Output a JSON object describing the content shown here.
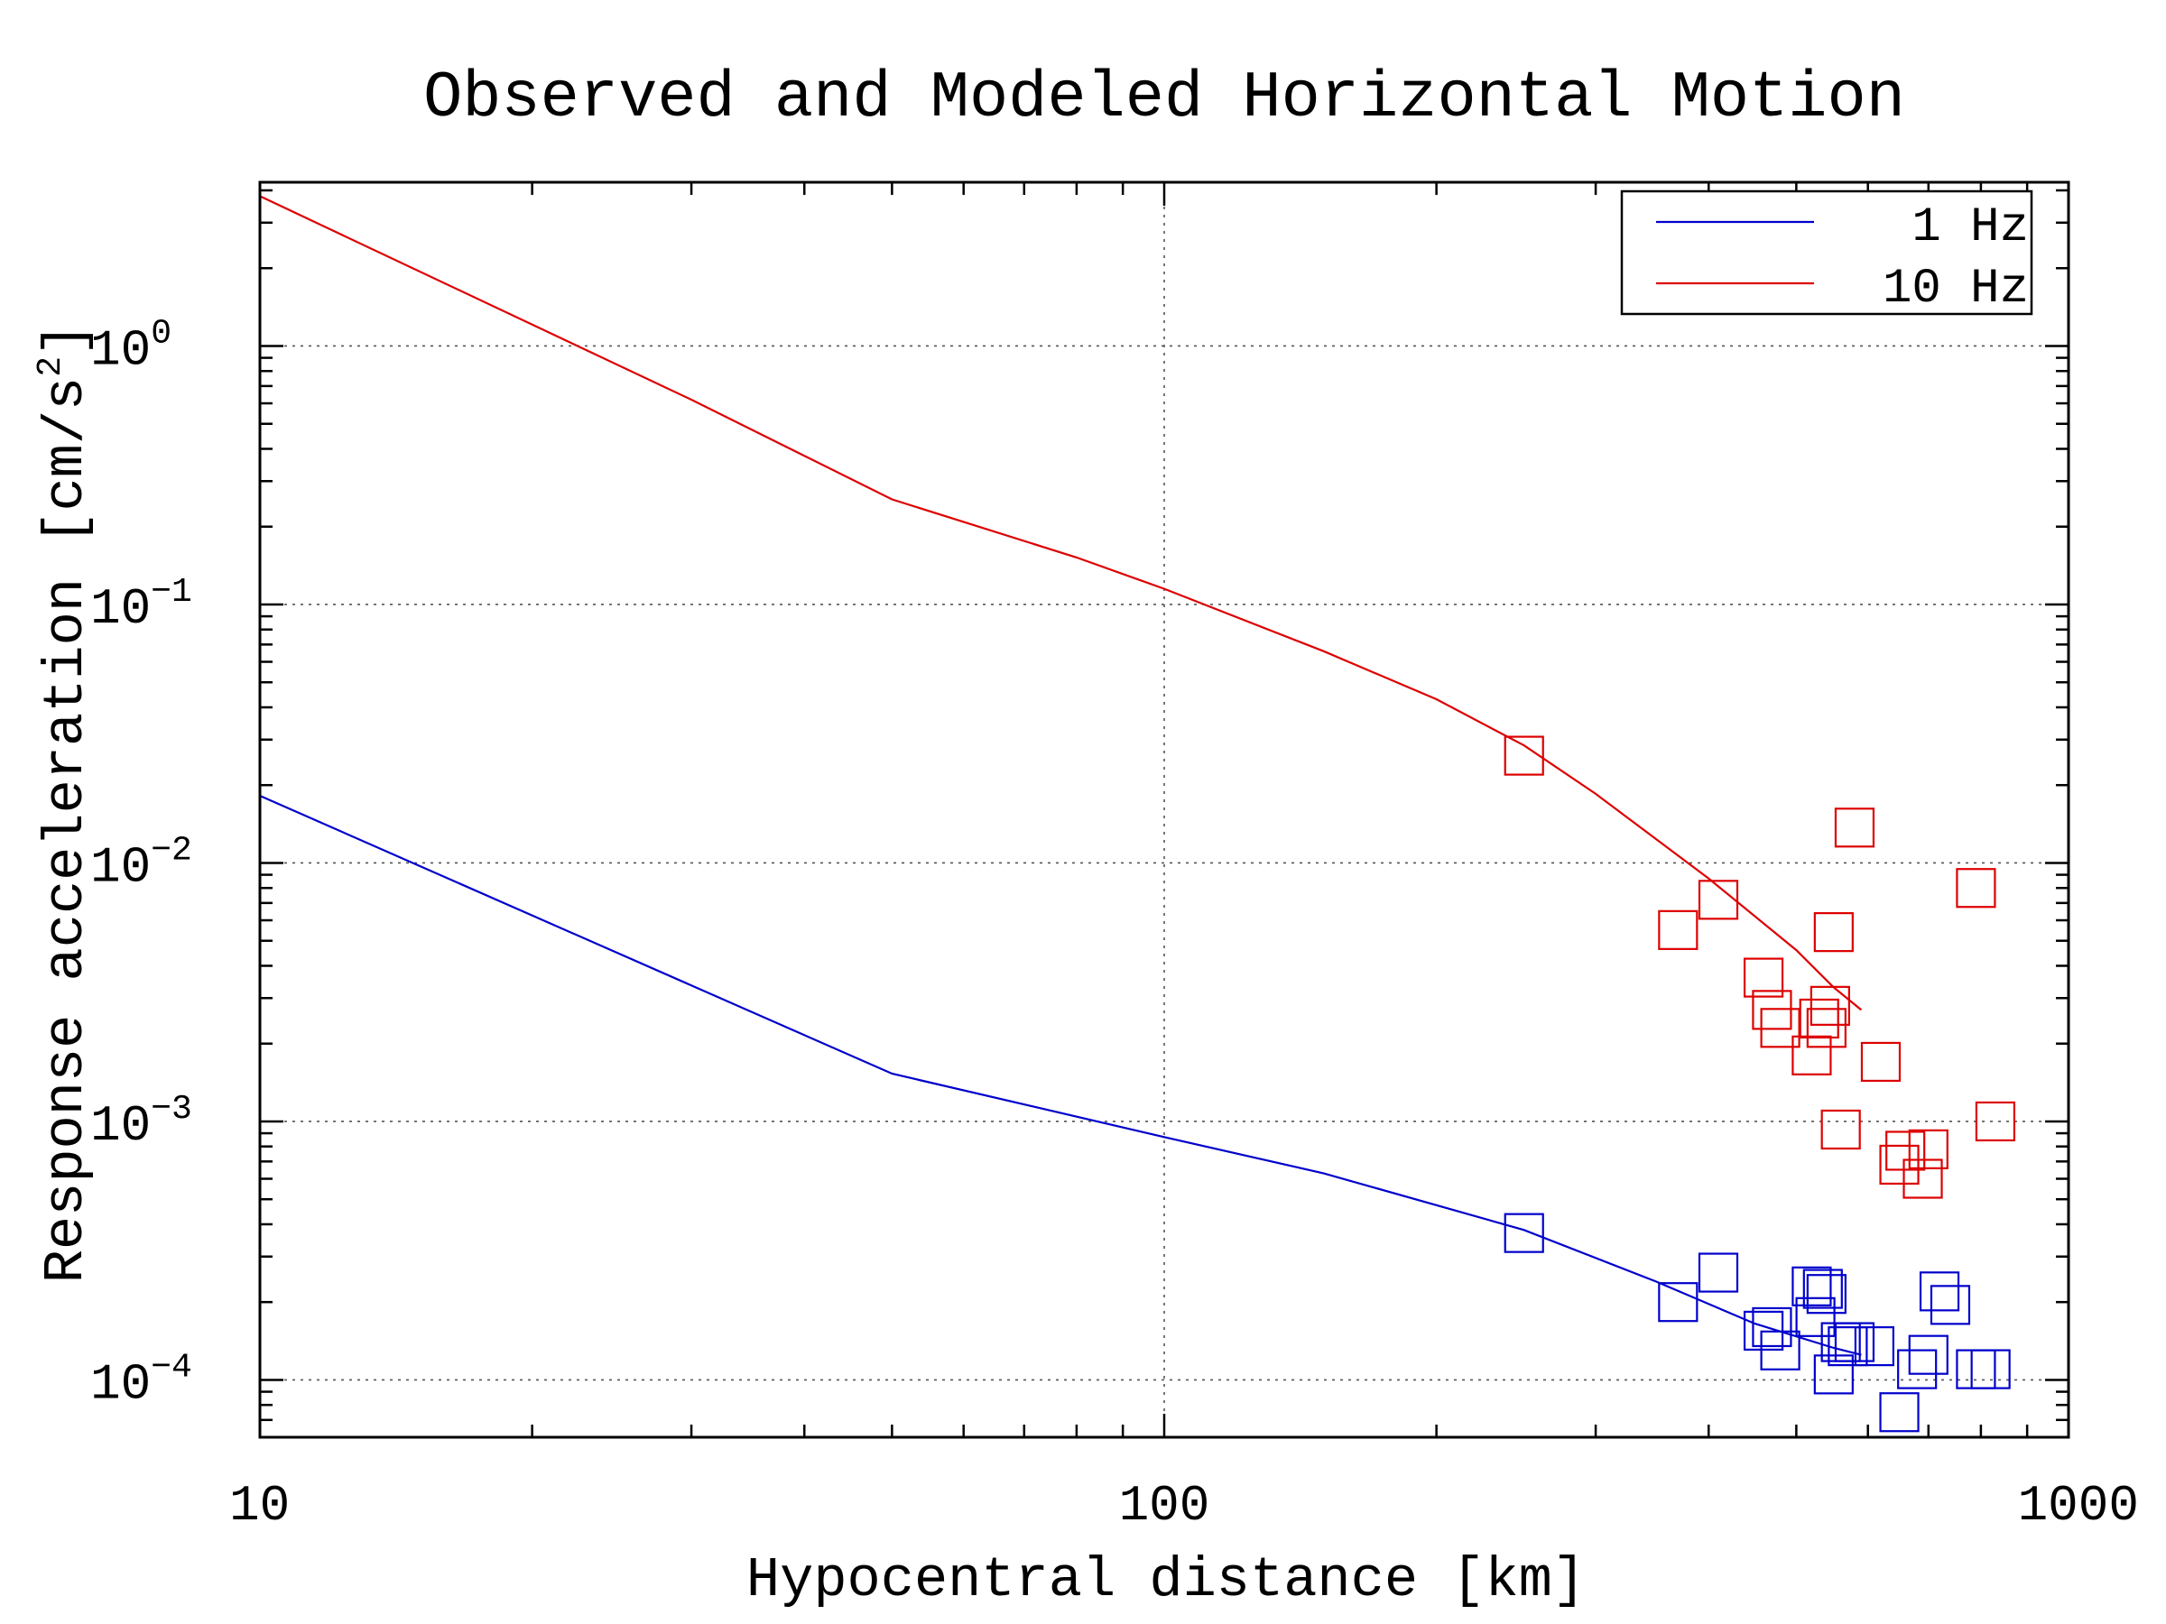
{
  "chart_data": {
    "type": "scatter",
    "title": "Observed and Modeled Horizontal Motion",
    "xlabel": "Hypocentral distance [km]",
    "ylabel_main": "Response acceleration [cm/s",
    "ylabel_sup": "2",
    "ylabel_tail": "]",
    "xscale": "log",
    "yscale": "log",
    "xlim": [
      10,
      1000
    ],
    "ylim": [
      6e-05,
      4.3
    ],
    "grid": true,
    "legend_position": "top-right",
    "x_ticks": [
      {
        "value": 10,
        "label": "10"
      },
      {
        "value": 100,
        "label": "100"
      },
      {
        "value": 1000,
        "label": "1000"
      }
    ],
    "y_ticks": [
      {
        "value": 1,
        "base": "10",
        "exp": "0"
      },
      {
        "value": 0.1,
        "base": "10",
        "exp": "−1"
      },
      {
        "value": 0.01,
        "base": "10",
        "exp": "−2"
      },
      {
        "value": 0.001,
        "base": "10",
        "exp": "−3"
      },
      {
        "value": 0.0001,
        "base": "10",
        "exp": "−4"
      }
    ],
    "series": [
      {
        "name": "1 Hz",
        "color": "#0000cc",
        "model": {
          "x": [
            10,
            50,
            100,
            150,
            250,
            350,
            450,
            550,
            590
          ],
          "y": [
            0.0182,
            0.00153,
            0.00087,
            0.00063,
            0.00038,
            0.00024,
            0.000165,
            0.000133,
            0.000125
          ]
        },
        "observed": {
          "x": [
            250,
            370,
            410,
            460,
            470,
            480,
            520,
            525,
            535,
            540,
            550,
            560,
            570,
            580,
            610,
            650,
            680,
            700,
            720,
            740,
            790,
            820
          ],
          "y": [
            0.00037,
            0.0002,
            0.00026,
            0.000155,
            0.00016,
            0.00013,
            0.00023,
            0.000175,
            0.000225,
            0.000215,
            0.000105,
            0.00014,
            0.000135,
            0.00014,
            0.000135,
            7.5e-05,
            0.00011,
            0.000125,
            0.00022,
            0.000195,
            0.00011,
            0.00011
          ]
        }
      },
      {
        "name": "10 Hz",
        "color": "#dd0000",
        "model": {
          "x": [
            10,
            30,
            50,
            80,
            100,
            150,
            200,
            250,
            300,
            400,
            500,
            550,
            590
          ],
          "y": [
            3.8,
            0.62,
            0.255,
            0.152,
            0.115,
            0.066,
            0.043,
            0.0285,
            0.0185,
            0.0087,
            0.0046,
            0.0033,
            0.0027
          ]
        },
        "observed": {
          "x": [
            250,
            370,
            410,
            460,
            470,
            480,
            520,
            530,
            540,
            545,
            550,
            560,
            580,
            620,
            650,
            660,
            690,
            700,
            790,
            830
          ],
          "y": [
            0.026,
            0.0055,
            0.0072,
            0.0036,
            0.0027,
            0.0023,
            0.0018,
            0.0025,
            0.0023,
            0.0028,
            0.0054,
            0.00093,
            0.0137,
            0.0017,
            0.00068,
            0.00077,
            0.0006,
            0.00078,
            0.008,
            0.001
          ]
        }
      }
    ]
  }
}
